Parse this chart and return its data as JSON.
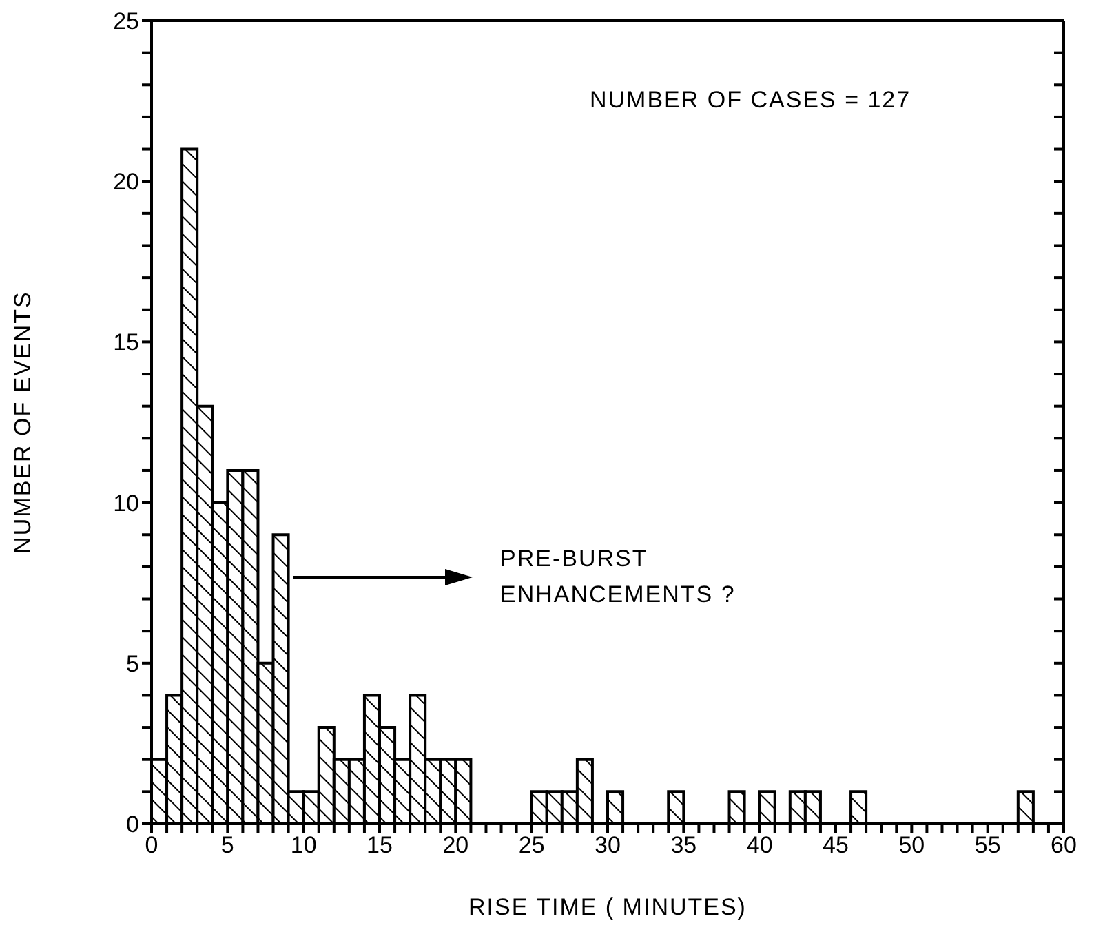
{
  "chart_data": {
    "type": "histogram",
    "xlabel": "RISE TIME  ( MINUTES)",
    "ylabel": "NUMBER OF EVENTS",
    "bins": [
      0,
      1,
      2,
      3,
      4,
      5,
      6,
      7,
      8,
      9,
      10,
      11,
      12,
      13,
      14,
      15,
      16,
      17,
      18,
      19,
      20,
      21,
      22,
      23,
      24,
      25,
      26,
      27,
      28,
      29,
      30,
      31,
      32,
      33,
      34,
      35,
      36,
      37,
      38,
      39,
      40,
      41,
      42,
      43,
      44,
      45,
      46,
      47,
      48,
      49,
      50,
      51,
      52,
      53,
      54,
      55,
      56,
      57,
      58
    ],
    "values": [
      2,
      4,
      21,
      13,
      10,
      11,
      11,
      5,
      9,
      1,
      1,
      3,
      2,
      2,
      4,
      3,
      2,
      4,
      2,
      2,
      2,
      0,
      0,
      0,
      0,
      1,
      1,
      1,
      2,
      0,
      1,
      0,
      0,
      0,
      1,
      0,
      0,
      0,
      1,
      0,
      1,
      0,
      1,
      1,
      0,
      0,
      1,
      0,
      0,
      0,
      0,
      0,
      0,
      0,
      0,
      0,
      0,
      1
    ],
    "color": "#000000",
    "xlim": [
      0,
      60
    ],
    "ylim": [
      0,
      25
    ],
    "xticks": [
      0,
      {
        "value": 1,
        "label": null
      },
      {
        "value": 2,
        "label": null
      },
      {
        "value": 3,
        "label": null
      },
      {
        "value": 4,
        "label": null
      },
      5,
      {
        "value": 6,
        "label": null
      },
      {
        "value": 7,
        "label": null
      },
      {
        "value": 8,
        "label": null
      },
      {
        "value": 9,
        "label": null
      },
      10,
      {
        "value": 11,
        "label": null
      },
      {
        "value": 12,
        "label": null
      },
      {
        "value": 13,
        "label": null
      },
      {
        "value": 14,
        "label": null
      },
      15,
      {
        "value": 16,
        "label": null
      },
      {
        "value": 17,
        "label": null
      },
      {
        "value": 18,
        "label": null
      },
      {
        "value": 19,
        "label": null
      },
      20,
      {
        "value": 21,
        "label": null
      },
      {
        "value": 22,
        "label": null
      },
      {
        "value": 23,
        "label": null
      },
      {
        "value": 24,
        "label": null
      },
      25,
      {
        "value": 26,
        "label": null
      },
      {
        "value": 27,
        "label": null
      },
      {
        "value": 28,
        "label": null
      },
      {
        "value": 29,
        "label": null
      },
      30,
      {
        "value": 31,
        "label": null
      },
      {
        "value": 32,
        "label": null
      },
      {
        "value": 33,
        "label": null
      },
      {
        "value": 34,
        "label": null
      },
      35,
      {
        "value": 36,
        "label": null
      },
      {
        "value": 37,
        "label": null
      },
      {
        "value": 38,
        "label": null
      },
      {
        "value": 39,
        "label": null
      },
      40,
      {
        "value": 41,
        "label": null
      },
      {
        "value": 42,
        "label": null
      },
      {
        "value": 43,
        "label": null
      },
      {
        "value": 44,
        "label": null
      },
      45,
      {
        "value": 46,
        "label": null
      },
      {
        "value": 47,
        "label": null
      },
      {
        "value": 48,
        "label": null
      },
      {
        "value": 49,
        "label": null
      },
      50,
      {
        "value": 51,
        "label": null
      },
      {
        "value": 52,
        "label": null
      },
      {
        "value": 53,
        "label": null
      },
      {
        "value": 54,
        "label": null
      },
      55,
      {
        "value": 56,
        "label": null
      },
      {
        "value": 57,
        "label": null
      },
      {
        "value": 58,
        "label": null
      },
      {
        "value": 59,
        "label": null
      },
      60
    ],
    "yticks": [
      0,
      {
        "value": 1,
        "label": null
      },
      {
        "value": 2,
        "label": null
      },
      {
        "value": 3,
        "label": null
      },
      {
        "value": 4,
        "label": null
      },
      5,
      {
        "value": 6,
        "label": null
      },
      {
        "value": 7,
        "label": null
      },
      {
        "value": 8,
        "label": null
      },
      {
        "value": 9,
        "label": null
      },
      10,
      {
        "value": 11,
        "label": null
      },
      {
        "value": 12,
        "label": null
      },
      {
        "value": 13,
        "label": null
      },
      {
        "value": 14,
        "label": null
      },
      15,
      {
        "value": 16,
        "label": null
      },
      {
        "value": 17,
        "label": null
      },
      {
        "value": 18,
        "label": null
      },
      {
        "value": 19,
        "label": null
      },
      20,
      {
        "value": 21,
        "label": null
      },
      {
        "value": 22,
        "label": null
      },
      {
        "value": 23,
        "label": null
      },
      {
        "value": 24,
        "label": null
      },
      25
    ],
    "annotations": [
      "NUMBER OF CASES = 127",
      "PRE-BURST ENHANCEMENTS ?"
    ]
  }
}
